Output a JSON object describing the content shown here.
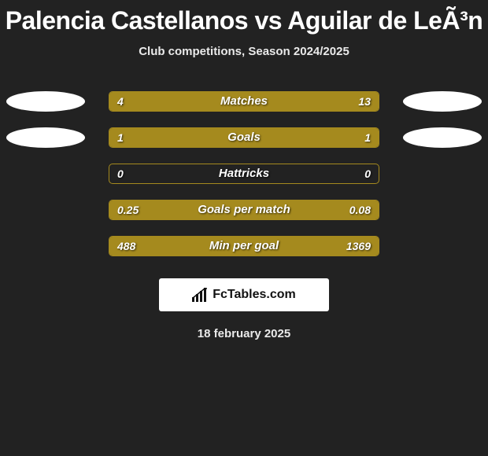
{
  "header": {
    "title": "Palencia Castellanos vs Aguilar de LeÃ³n",
    "subtitle": "Club competitions, Season 2024/2025"
  },
  "chart": {
    "type": "comparison-bar",
    "bar_color": "#a58a1e",
    "border_color": "#a58a1e",
    "background_color": "#222222",
    "text_color": "#ffffff",
    "rows": [
      {
        "label": "Matches",
        "left": "4",
        "right": "13",
        "left_pct": 23.5,
        "right_pct": 76.5,
        "show_left_oval": true,
        "show_right_oval": true
      },
      {
        "label": "Goals",
        "left": "1",
        "right": "1",
        "left_pct": 50.0,
        "right_pct": 50.0,
        "show_left_oval": true,
        "show_right_oval": true
      },
      {
        "label": "Hattricks",
        "left": "0",
        "right": "0",
        "left_pct": 0.0,
        "right_pct": 0.0,
        "show_left_oval": false,
        "show_right_oval": false
      },
      {
        "label": "Goals per match",
        "left": "0.25",
        "right": "0.08",
        "left_pct": 75.8,
        "right_pct": 24.2,
        "show_left_oval": false,
        "show_right_oval": false
      },
      {
        "label": "Min per goal",
        "left": "488",
        "right": "1369",
        "left_pct": 26.3,
        "right_pct": 73.7,
        "show_left_oval": false,
        "show_right_oval": false
      }
    ]
  },
  "footer": {
    "brand": "FcTables.com",
    "date": "18 february 2025"
  }
}
